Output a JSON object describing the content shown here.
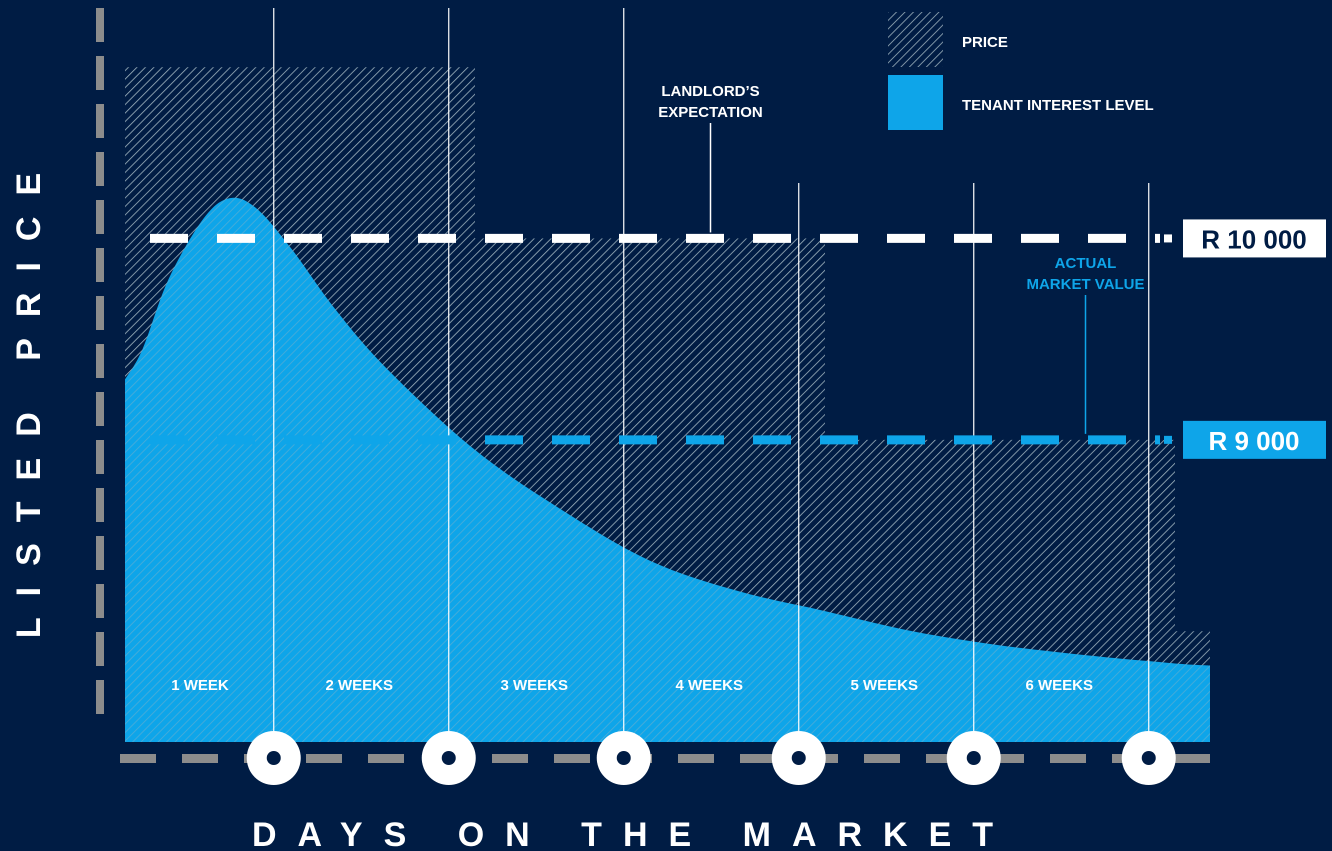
{
  "colors": {
    "background": "#001c44",
    "hatch": "#9fb3be",
    "tenant_interest": "#0ea5e9",
    "landlord_line": "#ffffff",
    "market_line": "#0ea5e9",
    "axis_dash": "#8c8c8c",
    "week_marker": "#ffffff"
  },
  "chart_data": {
    "type": "area",
    "title": "",
    "xlabel": "DAYS ON THE MARKET",
    "ylabel": "LISTED PRICE",
    "legend": {
      "placement": "top-right",
      "entries": [
        {
          "label": "PRICE",
          "style": "hatch"
        },
        {
          "label": "TENANT INTEREST LEVEL",
          "style": "solid"
        }
      ]
    },
    "categories": [
      "1 WEEK",
      "2 WEEKS",
      "3 WEEKS",
      "4 WEEKS",
      "5 WEEKS",
      "6 WEEKS"
    ],
    "xlim": [
      0,
      6
    ],
    "ylim": [
      7500,
      11000
    ],
    "grid": false,
    "reference_lines": [
      {
        "name": "landlord",
        "value": 10000,
        "label": "R 10 000",
        "annotation": [
          "LANDLORD’S",
          "EXPECTATION"
        ],
        "annotation_x": 2.5
      },
      {
        "name": "market",
        "value": 9000,
        "label": "R 9 000",
        "annotation": [
          "ACTUAL",
          "MARKET VALUE"
        ],
        "annotation_x": 5.5
      }
    ],
    "series": [
      {
        "name": "PRICE",
        "kind": "step",
        "steps": [
          {
            "x0": 0,
            "x1": 2,
            "y": 10850
          },
          {
            "x0": 2,
            "x1": 4,
            "y": 10000
          },
          {
            "x0": 4,
            "x1": 6,
            "y": 9000
          },
          {
            "x0": 6,
            "x1": 6.2,
            "y": 8050
          }
        ]
      },
      {
        "name": "TENANT INTEREST LEVEL",
        "kind": "curve",
        "points": [
          [
            0,
            9300
          ],
          [
            0.1,
            9450
          ],
          [
            0.25,
            9800
          ],
          [
            0.45,
            10100
          ],
          [
            0.6,
            10200
          ],
          [
            0.75,
            10150
          ],
          [
            0.95,
            9950
          ],
          [
            1.2,
            9650
          ],
          [
            1.5,
            9350
          ],
          [
            2,
            8950
          ],
          [
            2.5,
            8650
          ],
          [
            3,
            8400
          ],
          [
            3.5,
            8250
          ],
          [
            4,
            8150
          ],
          [
            4.5,
            8050
          ],
          [
            5,
            7980
          ],
          [
            5.5,
            7930
          ],
          [
            6,
            7890
          ],
          [
            6.2,
            7880
          ]
        ]
      }
    ]
  }
}
